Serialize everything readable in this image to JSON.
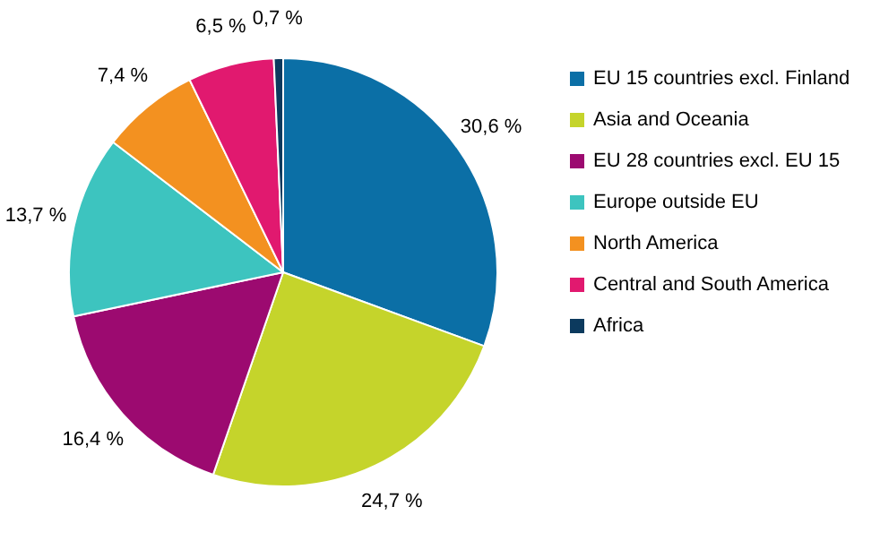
{
  "chart_data": {
    "type": "pie",
    "categories": [
      "EU 15 countries excl. Finland",
      "Asia and Oceania",
      "EU 28 countries excl. EU 15",
      "Europe outside EU",
      "North America",
      "Central and South America",
      "Africa"
    ],
    "values": [
      30.6,
      24.7,
      16.4,
      13.7,
      7.4,
      6.5,
      0.7
    ],
    "colors": [
      "#0b6fa6",
      "#c5d42b",
      "#9c0a70",
      "#3dc4bf",
      "#f39120",
      "#e1196f",
      "#0c3a5e"
    ],
    "value_labels": [
      "30,6 %",
      "24,7 %",
      "16,4 %",
      "13,7 %",
      "7,4 %",
      "6,5 %",
      "0,7 %"
    ],
    "legend": "right"
  }
}
